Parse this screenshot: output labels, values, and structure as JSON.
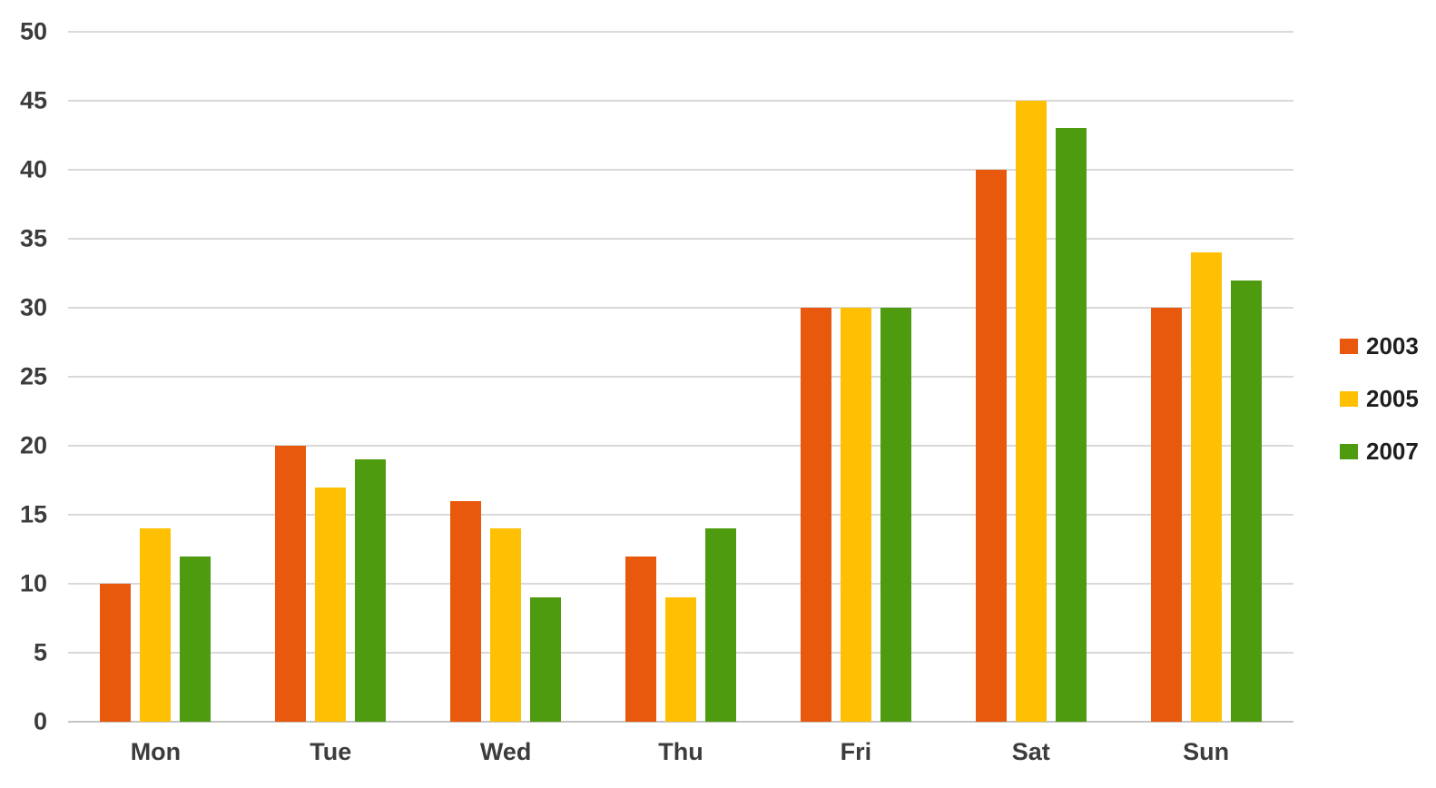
{
  "chart_data": {
    "type": "bar",
    "title": "",
    "xlabel": "",
    "ylabel": "",
    "categories": [
      "Mon",
      "Tue",
      "Wed",
      "Thu",
      "Fri",
      "Sat",
      "Sun"
    ],
    "series": [
      {
        "name": "2003",
        "color": "#e8590d",
        "values": [
          10,
          20,
          16,
          12,
          30,
          40,
          30
        ]
      },
      {
        "name": "2005",
        "color": "#ffc004",
        "values": [
          14,
          17,
          14,
          9,
          30,
          45,
          34
        ]
      },
      {
        "name": "2007",
        "color": "#4f9b10",
        "values": [
          12,
          19,
          9,
          14,
          30,
          43,
          32
        ]
      }
    ],
    "ylim": [
      0,
      50
    ],
    "yticks": [
      0,
      5,
      10,
      15,
      20,
      25,
      30,
      35,
      40,
      45,
      50
    ],
    "grid": "horizontal-only",
    "legend_position": "right"
  },
  "colors": {
    "background": "#ffffff",
    "gridline": "#d9d9d9",
    "axis_line": "#c4c4c4",
    "tick_label": "#3c3c3c",
    "legend_text": "#1e1e1e"
  }
}
